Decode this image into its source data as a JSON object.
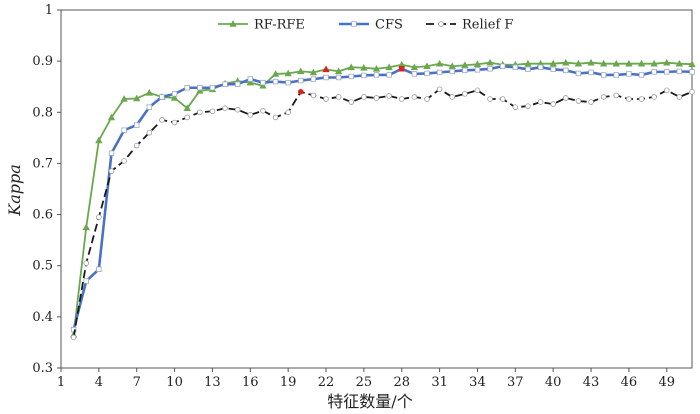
{
  "chart_data": {
    "type": "line",
    "xlabel": "特征数量/个",
    "ylabel": "Kappa",
    "xlim": [
      1,
      51
    ],
    "ylim": [
      0.3,
      1
    ],
    "x_ticks": [
      1,
      4,
      7,
      10,
      13,
      16,
      19,
      22,
      25,
      28,
      31,
      34,
      37,
      40,
      43,
      46,
      49
    ],
    "y_ticks": [
      "0.3",
      "0.4",
      "0.5",
      "0.6",
      "0.7",
      "0.8",
      "0.9",
      "1"
    ],
    "grid": false,
    "legend_position": "top-right",
    "x": [
      2,
      3,
      4,
      5,
      6,
      7,
      8,
      9,
      10,
      11,
      12,
      13,
      14,
      15,
      16,
      17,
      18,
      19,
      20,
      21,
      22,
      23,
      24,
      25,
      26,
      27,
      28,
      29,
      30,
      31,
      32,
      33,
      34,
      35,
      36,
      37,
      38,
      39,
      40,
      41,
      42,
      43,
      44,
      45,
      46,
      47,
      48,
      49,
      50,
      51
    ],
    "series": [
      {
        "name": "RF-RFE",
        "color": "#6aa84f",
        "marker": "triangle",
        "values": [
          0.365,
          0.575,
          0.745,
          0.79,
          0.826,
          0.827,
          0.838,
          0.83,
          0.828,
          0.808,
          0.842,
          0.845,
          0.856,
          0.861,
          0.858,
          0.852,
          0.875,
          0.876,
          0.88,
          0.878,
          0.884,
          0.88,
          0.888,
          0.887,
          0.885,
          0.888,
          0.893,
          0.888,
          0.89,
          0.895,
          0.89,
          0.892,
          0.894,
          0.897,
          0.893,
          0.893,
          0.895,
          0.895,
          0.895,
          0.897,
          0.895,
          0.897,
          0.895,
          0.895,
          0.895,
          0.895,
          0.895,
          0.897,
          0.895,
          0.894
        ],
        "highlight_x": [
          22
        ]
      },
      {
        "name": "CFS",
        "color": "#4a72c4",
        "marker": "square",
        "values": [
          0.375,
          0.47,
          0.493,
          0.72,
          0.765,
          0.775,
          0.81,
          0.83,
          0.836,
          0.848,
          0.848,
          0.848,
          0.855,
          0.855,
          0.865,
          0.858,
          0.86,
          0.858,
          0.862,
          0.865,
          0.868,
          0.868,
          0.87,
          0.872,
          0.873,
          0.873,
          0.885,
          0.875,
          0.876,
          0.878,
          0.88,
          0.882,
          0.883,
          0.885,
          0.89,
          0.888,
          0.884,
          0.888,
          0.884,
          0.882,
          0.876,
          0.878,
          0.873,
          0.873,
          0.875,
          0.873,
          0.879,
          0.879,
          0.88,
          0.879
        ],
        "highlight_x": [
          28
        ]
      },
      {
        "name": "Relief F",
        "color": "#1a1a1a",
        "marker": "circle",
        "values": [
          0.36,
          0.505,
          0.595,
          0.685,
          0.705,
          0.735,
          0.76,
          0.785,
          0.78,
          0.79,
          0.8,
          0.802,
          0.808,
          0.805,
          0.795,
          0.803,
          0.79,
          0.8,
          0.84,
          0.833,
          0.826,
          0.83,
          0.82,
          0.83,
          0.828,
          0.832,
          0.826,
          0.83,
          0.826,
          0.845,
          0.83,
          0.836,
          0.843,
          0.826,
          0.826,
          0.81,
          0.812,
          0.82,
          0.816,
          0.828,
          0.822,
          0.82,
          0.83,
          0.833,
          0.826,
          0.826,
          0.83,
          0.843,
          0.83,
          0.84
        ],
        "highlight_x": [
          20
        ]
      }
    ]
  }
}
